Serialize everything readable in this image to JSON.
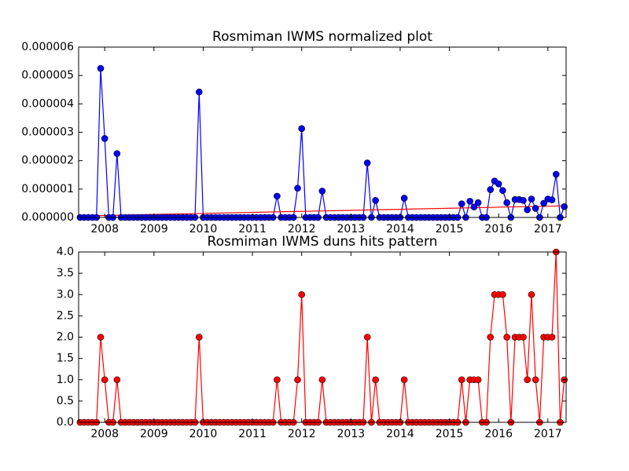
{
  "chart_data": [
    {
      "type": "line",
      "title": "Rosmiman IWMS normalized plot",
      "x": [
        2007.5,
        2007.583,
        2007.667,
        2007.75,
        2007.833,
        2007.917,
        2008,
        2008.083,
        2008.167,
        2008.25,
        2008.333,
        2008.417,
        2008.5,
        2008.583,
        2008.667,
        2008.75,
        2008.833,
        2008.917,
        2009,
        2009.083,
        2009.167,
        2009.25,
        2009.333,
        2009.417,
        2009.5,
        2009.583,
        2009.667,
        2009.75,
        2009.833,
        2009.917,
        2010,
        2010.083,
        2010.167,
        2010.25,
        2010.333,
        2010.417,
        2010.5,
        2010.583,
        2010.667,
        2010.75,
        2010.833,
        2010.917,
        2011,
        2011.083,
        2011.167,
        2011.25,
        2011.333,
        2011.417,
        2011.5,
        2011.583,
        2011.667,
        2011.75,
        2011.833,
        2011.917,
        2012,
        2012.083,
        2012.167,
        2012.25,
        2012.333,
        2012.417,
        2012.5,
        2012.583,
        2012.667,
        2012.75,
        2012.833,
        2012.917,
        2013,
        2013.083,
        2013.167,
        2013.25,
        2013.333,
        2013.417,
        2013.5,
        2013.583,
        2013.667,
        2013.75,
        2013.833,
        2013.917,
        2014,
        2014.083,
        2014.167,
        2014.25,
        2014.333,
        2014.417,
        2014.5,
        2014.583,
        2014.667,
        2014.75,
        2014.833,
        2014.917,
        2015,
        2015.083,
        2015.167,
        2015.25,
        2015.333,
        2015.417,
        2015.5,
        2015.583,
        2015.667,
        2015.75,
        2015.833,
        2015.917,
        2016,
        2016.083,
        2016.167,
        2016.25,
        2016.333,
        2016.417,
        2016.5,
        2016.583,
        2016.667,
        2016.75,
        2016.833,
        2016.917,
        2017,
        2017.083,
        2017.167,
        2017.25,
        2017.333
      ],
      "series": [
        {
          "color": "#0000ff",
          "values": [
            0,
            0,
            0,
            0,
            0,
            5.25e-06,
            2.78e-06,
            0,
            0,
            2.25e-06,
            0,
            0,
            0,
            0,
            0,
            0,
            0,
            0,
            0,
            0,
            0,
            0,
            0,
            0,
            0,
            0,
            0,
            0,
            0,
            4.42e-06,
            0,
            0,
            0,
            0,
            0,
            0,
            0,
            0,
            0,
            0,
            0,
            0,
            0,
            0,
            0,
            0,
            0,
            0,
            7.5e-07,
            0,
            0,
            0,
            0,
            1.03e-06,
            3.13e-06,
            0,
            0,
            0,
            0,
            9.3e-07,
            0,
            0,
            0,
            0,
            0,
            0,
            0,
            0,
            0,
            0,
            1.92e-06,
            0,
            6e-07,
            0,
            0,
            0,
            0,
            0,
            0,
            6.8e-07,
            0,
            0,
            0,
            0,
            0,
            0,
            0,
            0,
            0,
            0,
            0,
            0,
            0,
            4.8e-07,
            0,
            5.7e-07,
            3.7e-07,
            5.2e-07,
            0,
            0,
            9.8e-07,
            1.28e-06,
            1.18e-06,
            9.5e-07,
            5.2e-07,
            0,
            6.3e-07,
            6.3e-07,
            6e-07,
            2.7e-07,
            6.5e-07,
            3.2e-07,
            0,
            5e-07,
            6.5e-07,
            6.2e-07,
            1.52e-06,
            0,
            3.8e-07
          ]
        }
      ],
      "trend": {
        "color": "#ff0000",
        "x": [
          2007.47,
          2017.37
        ],
        "values": [
          5e-08,
          4.1e-07
        ]
      },
      "xlim": [
        2007.47,
        2017.37
      ],
      "xticks": [
        2008,
        2009,
        2010,
        2011,
        2012,
        2013,
        2014,
        2015,
        2016,
        2017
      ],
      "ylim": [
        0,
        6e-06
      ],
      "yticks": [
        {
          "value": 0,
          "label": "0.000000"
        },
        {
          "value": 1e-06,
          "label": "0.000001"
        },
        {
          "value": 2e-06,
          "label": "0.000002"
        },
        {
          "value": 3e-06,
          "label": "0.000003"
        },
        {
          "value": 4e-06,
          "label": "0.000004"
        },
        {
          "value": 5e-06,
          "label": "0.000005"
        },
        {
          "value": 6e-06,
          "label": "0.000006"
        }
      ]
    },
    {
      "type": "line",
      "title": "Rosmiman IWMS duns hits pattern",
      "x": [
        2007.5,
        2007.583,
        2007.667,
        2007.75,
        2007.833,
        2007.917,
        2008,
        2008.083,
        2008.167,
        2008.25,
        2008.333,
        2008.417,
        2008.5,
        2008.583,
        2008.667,
        2008.75,
        2008.833,
        2008.917,
        2009,
        2009.083,
        2009.167,
        2009.25,
        2009.333,
        2009.417,
        2009.5,
        2009.583,
        2009.667,
        2009.75,
        2009.833,
        2009.917,
        2010,
        2010.083,
        2010.167,
        2010.25,
        2010.333,
        2010.417,
        2010.5,
        2010.583,
        2010.667,
        2010.75,
        2010.833,
        2010.917,
        2011,
        2011.083,
        2011.167,
        2011.25,
        2011.333,
        2011.417,
        2011.5,
        2011.583,
        2011.667,
        2011.75,
        2011.833,
        2011.917,
        2012,
        2012.083,
        2012.167,
        2012.25,
        2012.333,
        2012.417,
        2012.5,
        2012.583,
        2012.667,
        2012.75,
        2012.833,
        2012.917,
        2013,
        2013.083,
        2013.167,
        2013.25,
        2013.333,
        2013.417,
        2013.5,
        2013.583,
        2013.667,
        2013.75,
        2013.833,
        2013.917,
        2014,
        2014.083,
        2014.167,
        2014.25,
        2014.333,
        2014.417,
        2014.5,
        2014.583,
        2014.667,
        2014.75,
        2014.833,
        2014.917,
        2015,
        2015.083,
        2015.167,
        2015.25,
        2015.333,
        2015.417,
        2015.5,
        2015.583,
        2015.667,
        2015.75,
        2015.833,
        2015.917,
        2016,
        2016.083,
        2016.167,
        2016.25,
        2016.333,
        2016.417,
        2016.5,
        2016.583,
        2016.667,
        2016.75,
        2016.833,
        2016.917,
        2017,
        2017.083,
        2017.167,
        2017.25,
        2017.333
      ],
      "series": [
        {
          "color": "#ff0000",
          "values": [
            0,
            0,
            0,
            0,
            0,
            2,
            1,
            0,
            0,
            1,
            0,
            0,
            0,
            0,
            0,
            0,
            0,
            0,
            0,
            0,
            0,
            0,
            0,
            0,
            0,
            0,
            0,
            0,
            0,
            2,
            0,
            0,
            0,
            0,
            0,
            0,
            0,
            0,
            0,
            0,
            0,
            0,
            0,
            0,
            0,
            0,
            0,
            0,
            1,
            0,
            0,
            0,
            0,
            1,
            3,
            0,
            0,
            0,
            0,
            1,
            0,
            0,
            0,
            0,
            0,
            0,
            0,
            0,
            0,
            0,
            2,
            0,
            1,
            0,
            0,
            0,
            0,
            0,
            0,
            1,
            0,
            0,
            0,
            0,
            0,
            0,
            0,
            0,
            0,
            0,
            0,
            0,
            0,
            1,
            0,
            1,
            1,
            1,
            0,
            0,
            2,
            3,
            3,
            3,
            2,
            0,
            2,
            2,
            2,
            1,
            3,
            1,
            0,
            2,
            2,
            2,
            4,
            0,
            1
          ]
        }
      ],
      "xlim": [
        2007.47,
        2017.37
      ],
      "xticks": [
        2008,
        2009,
        2010,
        2011,
        2012,
        2013,
        2014,
        2015,
        2016,
        2017
      ],
      "ylim": [
        0,
        4
      ],
      "yticks": [
        {
          "value": 0,
          "label": "0.0"
        },
        {
          "value": 0.5,
          "label": "0.5"
        },
        {
          "value": 1,
          "label": "1.0"
        },
        {
          "value": 1.5,
          "label": "1.5"
        },
        {
          "value": 2,
          "label": "2.0"
        },
        {
          "value": 2.5,
          "label": "2.5"
        },
        {
          "value": 3,
          "label": "3.0"
        },
        {
          "value": 3.5,
          "label": "3.5"
        },
        {
          "value": 4,
          "label": "4.0"
        }
      ]
    }
  ]
}
